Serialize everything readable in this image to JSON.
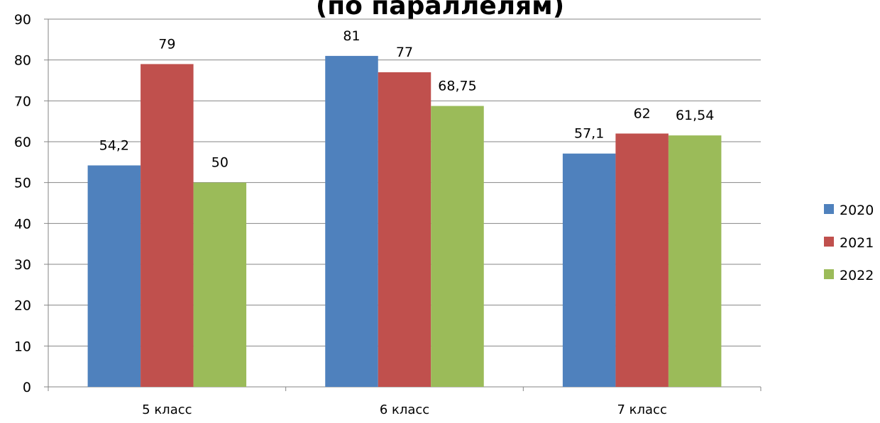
{
  "chart_data": {
    "type": "bar",
    "title": "(по параллелям)",
    "categories": [
      "5 класс",
      "6 класс",
      "7 класс"
    ],
    "series": [
      {
        "name": "2020",
        "color": "#4F81BD",
        "values": [
          54.2,
          81,
          57.1
        ],
        "labels": [
          "54,2",
          "81",
          "57,1"
        ]
      },
      {
        "name": "2021",
        "color": "#C0504D",
        "values": [
          79,
          77,
          62
        ],
        "labels": [
          "79",
          "77",
          "62"
        ]
      },
      {
        "name": "2022",
        "color": "#9BBB59",
        "values": [
          50,
          68.75,
          61.54
        ],
        "labels": [
          "50",
          "68,75",
          "61,54"
        ]
      }
    ],
    "ylim": [
      0,
      90
    ],
    "yticks": [
      0,
      10,
      20,
      30,
      40,
      50,
      60,
      70,
      80,
      90
    ],
    "grid": true,
    "legend_position": "right"
  }
}
